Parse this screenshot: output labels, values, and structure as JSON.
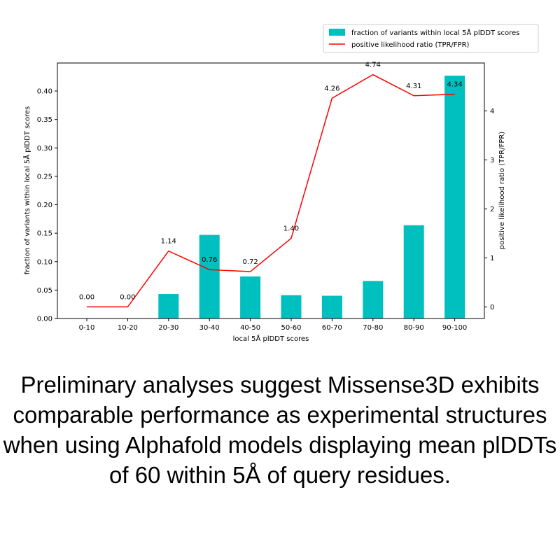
{
  "chart_data": {
    "type": "bar",
    "categories": [
      "0-10",
      "10-20",
      "20-30",
      "30-40",
      "40-50",
      "50-60",
      "60-70",
      "70-80",
      "80-90",
      "90-100"
    ],
    "series": [
      {
        "name": "fraction of variants within local 5Å plDDT scores",
        "type": "bar",
        "axis": "left",
        "values": [
          0.0,
          0.0,
          0.043,
          0.147,
          0.074,
          0.041,
          0.04,
          0.066,
          0.164,
          0.427
        ],
        "color": "#00bfbf"
      },
      {
        "name": "positive likelihood ratio (TPR/FPR)",
        "type": "line",
        "axis": "right",
        "values": [
          0.0,
          0.0,
          1.14,
          0.76,
          0.72,
          1.4,
          4.26,
          4.74,
          4.31,
          4.34
        ],
        "color": "#ff0000"
      }
    ],
    "data_labels": [
      "0.00",
      "0.00",
      "1.14",
      "0.76",
      "0.72",
      "1.40",
      "4.26",
      "4.74",
      "4.31",
      "4.34"
    ],
    "xlabel": "local 5Å plDDT scores",
    "ylabel": "fraction of variants within local 5Å plDDT scores",
    "y2label": "positive likelihood ratio (TPR/FPR)",
    "ylim": [
      0,
      0.4493
    ],
    "y2lim": [
      -0.237,
      4.978
    ],
    "yticks": [
      "0.00",
      "0.05",
      "0.10",
      "0.15",
      "0.20",
      "0.25",
      "0.30",
      "0.35",
      "0.40"
    ],
    "y2ticks": [
      "0",
      "1",
      "2",
      "3",
      "4"
    ],
    "legend_position": "above-right"
  },
  "caption": "Preliminary analyses suggest Missense3D exhibits comparable performance as experimental structures when using Alphafold models displaying mean plDDTs of 60 within 5Å of query residues."
}
